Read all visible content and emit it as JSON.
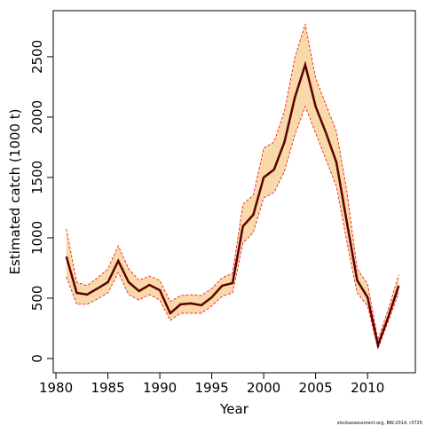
{
  "chart_data": {
    "type": "line",
    "xlabel": "Year",
    "ylabel": "Estimated catch (1000 t)",
    "footnote": "stockassessment.org, BW-2014, r3725",
    "x": [
      1981,
      1982,
      1983,
      1984,
      1985,
      1986,
      1987,
      1988,
      1989,
      1990,
      1991,
      1992,
      1993,
      1994,
      1995,
      1996,
      1997,
      1998,
      1999,
      2000,
      2001,
      2002,
      2003,
      2004,
      2005,
      2006,
      2007,
      2008,
      2009,
      2010,
      2011,
      2012,
      2013
    ],
    "series": [
      {
        "name": "Estimate",
        "color": "#5c0000",
        "values": [
          845,
          544,
          530,
          580,
          632,
          809,
          632,
          559,
          610,
          566,
          375,
          449,
          456,
          441,
          507,
          603,
          625,
          1096,
          1191,
          1500,
          1566,
          1794,
          2162,
          2434,
          2088,
          1868,
          1625,
          1132,
          647,
          507,
          110,
          346,
          603
        ]
      },
      {
        "name": "Upper",
        "color": "#ff0000",
        "values": [
          1074,
          632,
          603,
          669,
          743,
          934,
          743,
          647,
          684,
          647,
          471,
          522,
          529,
          522,
          581,
          669,
          706,
          1279,
          1353,
          1743,
          1794,
          2051,
          2493,
          2772,
          2324,
          2103,
          1882,
          1390,
          743,
          618,
          154,
          412,
          691
        ]
      },
      {
        "name": "Lower",
        "color": "#ff0000",
        "values": [
          676,
          449,
          449,
          493,
          544,
          713,
          529,
          485,
          529,
          485,
          316,
          375,
          375,
          375,
          434,
          515,
          544,
          956,
          1044,
          1331,
          1375,
          1551,
          1853,
          2088,
          1868,
          1647,
          1426,
          971,
          544,
          434,
          81,
          309,
          544
        ]
      }
    ],
    "band_color": "#f7d9aa",
    "xlim": [
      1979.74,
      2014.6
    ],
    "ylim": [
      -118,
      2882
    ],
    "xticks": [
      1980,
      1985,
      1990,
      1995,
      2000,
      2005,
      2010
    ],
    "yticks": [
      0,
      500,
      1000,
      1500,
      2000,
      2500
    ]
  }
}
